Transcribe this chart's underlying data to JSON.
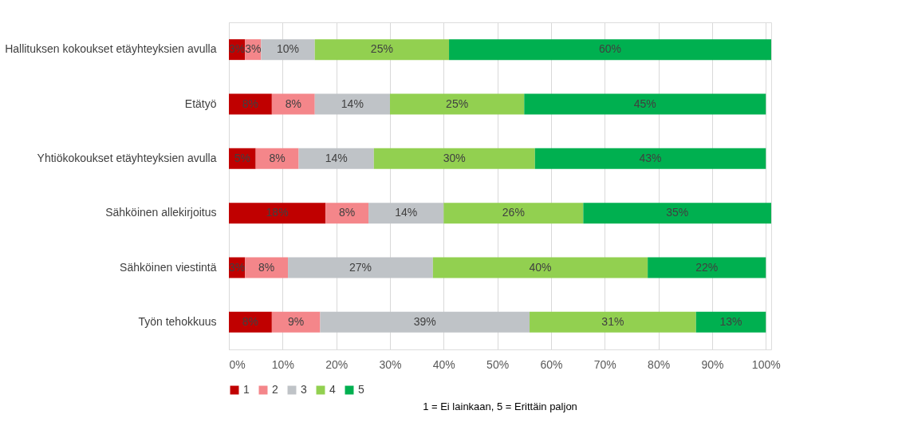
{
  "chart_data": {
    "type": "bar",
    "orientation": "horizontal",
    "stacked": true,
    "categories": [
      "Hallituksen kokoukset etäyhteyksien avulla",
      "Etätyö",
      "Yhtiökokoukset etäyhteyksien  avulla",
      "Sähköinen allekirjoitus",
      "Sähköinen viestintä",
      "Työn tehokkuus"
    ],
    "series": [
      {
        "name": "1",
        "color": "#c00000",
        "values": [
          3,
          8,
          5,
          18,
          3,
          8
        ],
        "value_labels": [
          "3%",
          "8%",
          "5%",
          "18%",
          "3%",
          "8%"
        ]
      },
      {
        "name": "2",
        "color": "#f4868a",
        "values": [
          3,
          8,
          8,
          8,
          8,
          9
        ],
        "value_labels": [
          "3%",
          "8%",
          "8%",
          "8%",
          "8%",
          "9%"
        ]
      },
      {
        "name": "3",
        "color": "#bfc3c7",
        "values": [
          10,
          14,
          14,
          14,
          27,
          39
        ],
        "value_labels": [
          "10%",
          "14%",
          "14%",
          "14%",
          "27%",
          "39%"
        ]
      },
      {
        "name": "4",
        "color": "#92d050",
        "values": [
          25,
          25,
          30,
          26,
          40,
          31
        ],
        "value_labels": [
          "25%",
          "25%",
          "30%",
          "26%",
          "40%",
          "31%"
        ]
      },
      {
        "name": "5",
        "color": "#00b050",
        "values": [
          60,
          45,
          43,
          35,
          22,
          13
        ],
        "value_labels": [
          "60%",
          "45%",
          "43%",
          "35%",
          "22%",
          "13%"
        ]
      }
    ],
    "xlim": [
      0,
      101
    ],
    "xticks": [
      {
        "value": 0,
        "label": "0%"
      },
      {
        "value": 10,
        "label": "10%"
      },
      {
        "value": 20,
        "label": "20%"
      },
      {
        "value": 30,
        "label": "30%"
      },
      {
        "value": 40,
        "label": "40%"
      },
      {
        "value": 50,
        "label": "50%"
      },
      {
        "value": 60,
        "label": "60%"
      },
      {
        "value": 70,
        "label": "70%"
      },
      {
        "value": 80,
        "label": "80%"
      },
      {
        "value": 90,
        "label": "90%"
      },
      {
        "value": 100,
        "label": "100%"
      }
    ],
    "grid": "x",
    "legend": "bottom",
    "annotations": [
      "1 = Ei lainkaan, 5 = Erittäin paljon"
    ]
  }
}
